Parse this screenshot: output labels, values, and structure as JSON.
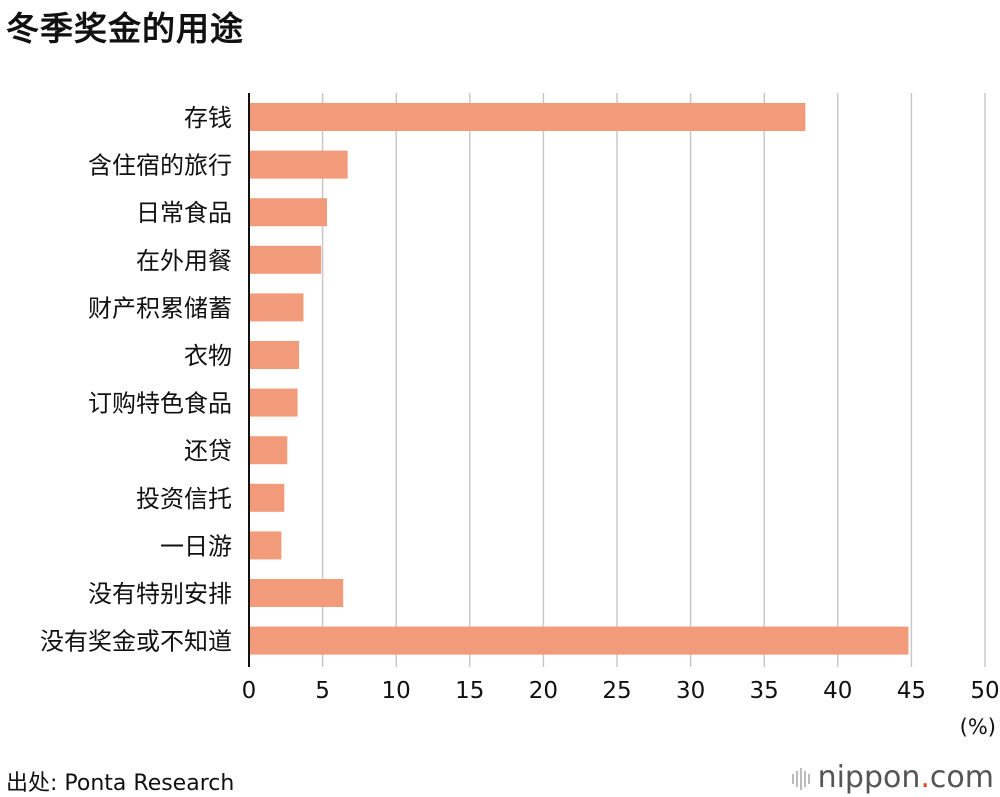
{
  "title": "冬季奖金的用途",
  "source": "出处: Ponta Research",
  "brand": {
    "name": "nippon",
    "dot": ".",
    "tld": "com",
    "dot_color": "#e8431a"
  },
  "chart_data": {
    "type": "bar",
    "orientation": "horizontal",
    "title": "冬季奖金的用途",
    "xlabel": "(%)",
    "ylabel": "",
    "xlim": [
      0,
      50
    ],
    "xticks": [
      0,
      5,
      10,
      15,
      20,
      25,
      30,
      35,
      40,
      45,
      50
    ],
    "grid": true,
    "bar_color": "#f29b7a",
    "categories": [
      "存钱",
      "含住宿的旅行",
      "日常食品",
      "在外用餐",
      "财产积累储蓄",
      "衣物",
      "订购特色食品",
      "还贷",
      "投资信托",
      "一日游",
      "没有特别安排",
      "没有奖金或不知道"
    ],
    "values": [
      37.8,
      6.7,
      5.3,
      4.9,
      3.7,
      3.4,
      3.3,
      2.6,
      2.4,
      2.2,
      6.4,
      44.8
    ]
  }
}
